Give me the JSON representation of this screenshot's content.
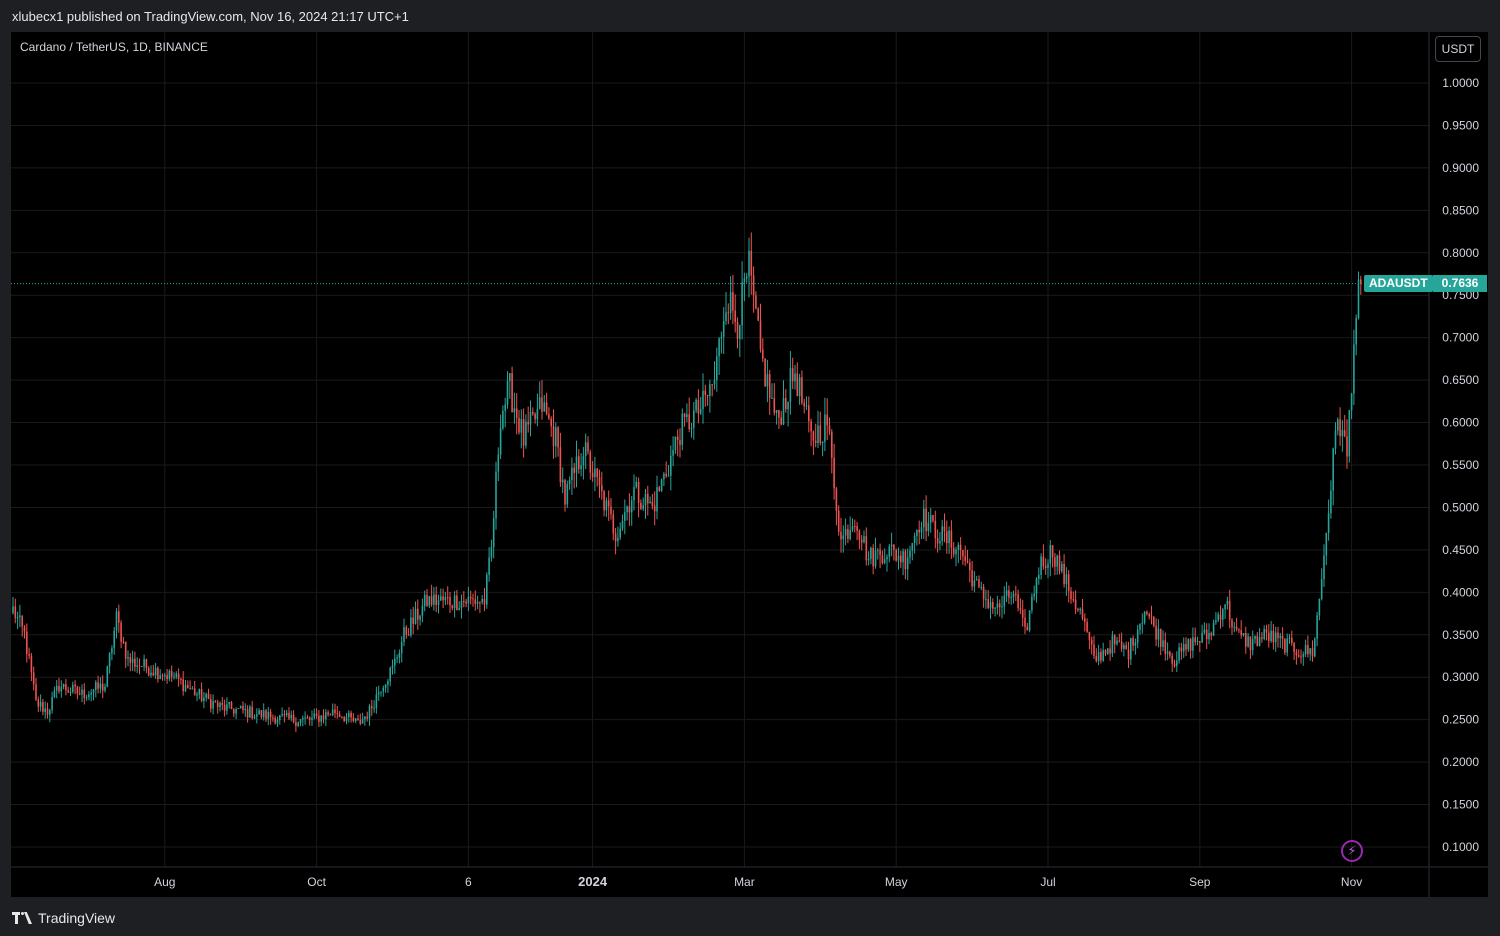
{
  "header": {
    "published_text": "xlubecx1 published on TradingView.com, Nov 16, 2024 21:17 UTC+1"
  },
  "legend": {
    "symbol_title": "Cardano / TetherUS, 1D, BINANCE"
  },
  "currency_button": {
    "label": "USDT"
  },
  "price_tag": {
    "symbol": "ADAUSDT",
    "value": "0.7636"
  },
  "footer": {
    "brand": "TradingView"
  },
  "colors": {
    "up": "#26a69a",
    "down": "#ef5350",
    "background": "#000000",
    "grid": "#1a1a1a",
    "axis_text": "#d1d4dc",
    "accent": "#9c27b0"
  },
  "icons": {
    "logo": "tradingview-logo-icon",
    "alert": "lightning-bolt-icon"
  },
  "chart_data": {
    "type": "candlestick",
    "symbol": "ADAUSDT",
    "interval": "1D",
    "exchange": "BINANCE",
    "ylim": [
      0.08,
      1.05
    ],
    "y_ticks": [
      "1.0000",
      "0.9500",
      "0.9000",
      "0.8500",
      "0.8000",
      "0.7500",
      "0.7000",
      "0.6500",
      "0.6000",
      "0.5500",
      "0.5000",
      "0.4500",
      "0.4000",
      "0.3500",
      "0.3000",
      "0.2500",
      "0.2000",
      "0.1500",
      "0.1000"
    ],
    "x_ticks": [
      "Aug",
      "Oct",
      "6",
      "2024",
      "Mar",
      "May",
      "Jul",
      "Sep",
      "Nov"
    ],
    "last_price": 0.7636,
    "anchors": [
      [
        0,
        0.38
      ],
      [
        5,
        0.35
      ],
      [
        10,
        0.27
      ],
      [
        15,
        0.26
      ],
      [
        20,
        0.29
      ],
      [
        30,
        0.28
      ],
      [
        40,
        0.29
      ],
      [
        45,
        0.37
      ],
      [
        50,
        0.32
      ],
      [
        60,
        0.31
      ],
      [
        70,
        0.3
      ],
      [
        80,
        0.28
      ],
      [
        90,
        0.265
      ],
      [
        100,
        0.26
      ],
      [
        110,
        0.255
      ],
      [
        120,
        0.25
      ],
      [
        130,
        0.25
      ],
      [
        140,
        0.26
      ],
      [
        150,
        0.245
      ],
      [
        155,
        0.26
      ],
      [
        160,
        0.29
      ],
      [
        165,
        0.31
      ],
      [
        170,
        0.35
      ],
      [
        180,
        0.39
      ],
      [
        190,
        0.39
      ],
      [
        200,
        0.39
      ],
      [
        205,
        0.39
      ],
      [
        208,
        0.45
      ],
      [
        212,
        0.61
      ],
      [
        216,
        0.64
      ],
      [
        222,
        0.58
      ],
      [
        230,
        0.62
      ],
      [
        236,
        0.58
      ],
      [
        240,
        0.51
      ],
      [
        248,
        0.57
      ],
      [
        255,
        0.52
      ],
      [
        262,
        0.47
      ],
      [
        270,
        0.52
      ],
      [
        278,
        0.5
      ],
      [
        285,
        0.55
      ],
      [
        290,
        0.59
      ],
      [
        300,
        0.62
      ],
      [
        305,
        0.65
      ],
      [
        310,
        0.75
      ],
      [
        315,
        0.72
      ],
      [
        320,
        0.78
      ],
      [
        325,
        0.68
      ],
      [
        332,
        0.6
      ],
      [
        340,
        0.66
      ],
      [
        347,
        0.58
      ],
      [
        354,
        0.6
      ],
      [
        360,
        0.46
      ],
      [
        366,
        0.49
      ],
      [
        372,
        0.44
      ],
      [
        380,
        0.45
      ],
      [
        388,
        0.44
      ],
      [
        395,
        0.49
      ],
      [
        402,
        0.47
      ],
      [
        412,
        0.45
      ],
      [
        420,
        0.4
      ],
      [
        428,
        0.38
      ],
      [
        435,
        0.4
      ],
      [
        440,
        0.35
      ],
      [
        446,
        0.43
      ],
      [
        452,
        0.45
      ],
      [
        458,
        0.41
      ],
      [
        465,
        0.37
      ],
      [
        470,
        0.32
      ],
      [
        478,
        0.34
      ],
      [
        485,
        0.33
      ],
      [
        492,
        0.38
      ],
      [
        498,
        0.35
      ],
      [
        505,
        0.32
      ],
      [
        512,
        0.34
      ],
      [
        520,
        0.35
      ],
      [
        527,
        0.39
      ],
      [
        532,
        0.35
      ],
      [
        538,
        0.34
      ],
      [
        545,
        0.35
      ],
      [
        552,
        0.34
      ],
      [
        560,
        0.33
      ],
      [
        565,
        0.33
      ],
      [
        568,
        0.39
      ],
      [
        572,
        0.5
      ],
      [
        576,
        0.61
      ],
      [
        580,
        0.56
      ],
      [
        583,
        0.7
      ],
      [
        586,
        0.77
      ]
    ],
    "x_tick_positions": [
      66,
      132,
      198,
      252,
      318,
      384,
      450,
      516,
      582
    ]
  }
}
